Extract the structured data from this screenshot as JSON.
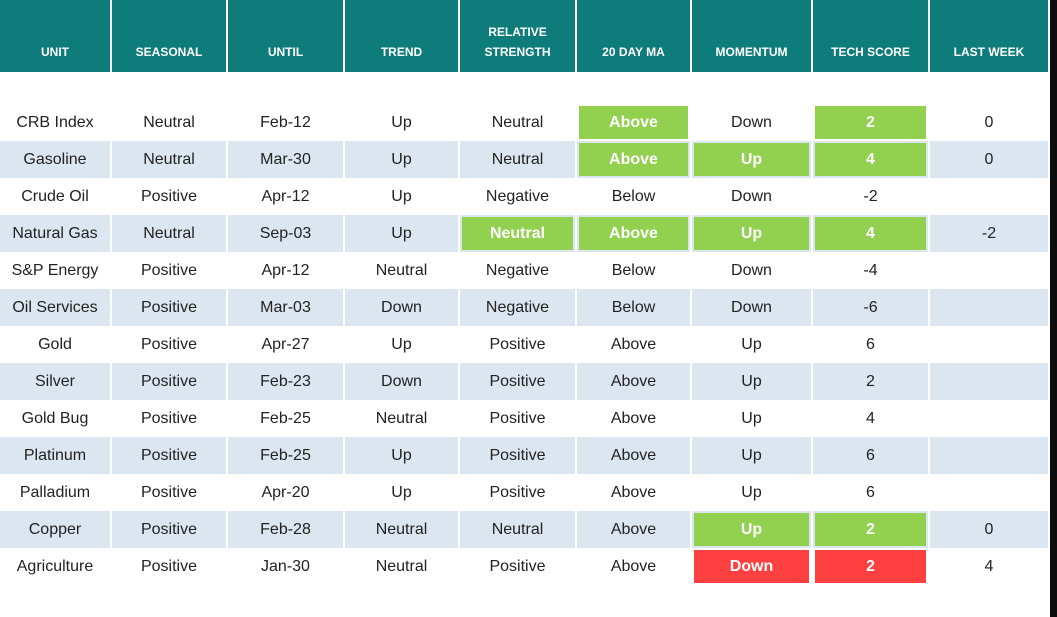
{
  "table": {
    "header": [
      "UNIT",
      "SEASONAL",
      "UNTIL",
      "TREND",
      "RELATIVE STRENGTH",
      "20 DAY MA",
      "MOMENTUM",
      "TECH SCORE",
      "LAST WEEK"
    ],
    "rows": [
      [
        "CRB Index",
        "Neutral",
        "Feb-12",
        "Up",
        "Neutral",
        {
          "text": "Above",
          "fill": "#92d050"
        },
        "Down",
        {
          "text": 2,
          "fill": "#92d050"
        },
        0
      ],
      [
        "Gasoline",
        "Neutral",
        "Mar-30",
        "Up",
        "Neutral",
        {
          "text": "Above",
          "fill": "#92d050"
        },
        {
          "text": "Up",
          "fill": "#92d050"
        },
        {
          "text": 4,
          "fill": "#92d050"
        },
        0
      ],
      [
        "Crude Oil",
        "Positive",
        "Apr-12",
        "Up",
        "Negative",
        "Below",
        "Down",
        -2,
        null
      ],
      [
        "Natural Gas",
        "Neutral",
        "Sep-03",
        "Up",
        {
          "text": "Neutral",
          "fill": "#92d050"
        },
        {
          "text": "Above",
          "fill": "#92d050"
        },
        {
          "text": "Up",
          "fill": "#92d050"
        },
        {
          "text": 4,
          "fill": "#92d050"
        },
        -2
      ],
      [
        "S&P Energy",
        "Positive",
        "Apr-12",
        "Neutral",
        "Negative",
        "Below",
        "Down",
        -4,
        null
      ],
      [
        "Oil Services",
        "Positive",
        "Mar-03",
        "Down",
        "Negative",
        "Below",
        "Down",
        -6,
        null
      ],
      [
        "Gold",
        "Positive",
        "Apr-27",
        "Up",
        "Positive",
        "Above",
        "Up",
        6,
        null
      ],
      [
        "Silver",
        "Positive",
        "Feb-23",
        "Down",
        "Positive",
        "Above",
        "Up",
        2,
        null
      ],
      [
        "Gold Bug",
        "Positive",
        "Feb-25",
        "Neutral",
        "Positive",
        "Above",
        "Up",
        4,
        null
      ],
      [
        "Platinum",
        "Positive",
        "Feb-25",
        "Up",
        "Positive",
        "Above",
        "Up",
        6,
        null
      ],
      [
        "Palladium",
        "Positive",
        "Apr-20",
        "Up",
        "Positive",
        "Above",
        "Up",
        6,
        null
      ],
      [
        "Copper",
        "Positive",
        "Feb-28",
        "Neutral",
        "Neutral",
        "Above",
        {
          "text": "Up",
          "fill": "#92d050"
        },
        {
          "text": 2,
          "fill": "#92d050"
        },
        0
      ],
      [
        "Agriculture",
        "Positive",
        "Jan-30",
        "Neutral",
        "Positive",
        "Above",
        {
          "text": "Down",
          "fill": "#ff4040"
        },
        {
          "text": 2,
          "fill": "#ff4040"
        },
        4
      ]
    ]
  }
}
